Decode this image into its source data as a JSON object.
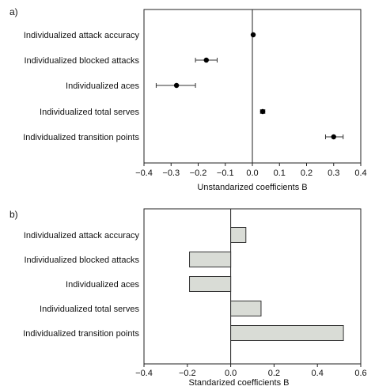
{
  "chart_data": [
    {
      "panel_label": "a)",
      "type": "scatter",
      "categories": [
        "Individualized attack accuracy",
        "Individualized blocked attacks",
        "Individualized aces",
        "Individualized total serves",
        "Individualized transition points"
      ],
      "values": [
        0.003,
        -0.17,
        -0.28,
        0.038,
        0.3
      ],
      "error_low": [
        0.003,
        -0.21,
        -0.355,
        0.03,
        0.27
      ],
      "error_high": [
        0.003,
        -0.13,
        -0.21,
        0.046,
        0.335
      ],
      "xlabel": "Unstandarized coefficients B",
      "xlim": [
        -0.4,
        0.4
      ],
      "xticks": [
        "−0.4",
        "−0.3",
        "−0.2",
        "−0.1",
        "0.0",
        "0.1",
        "0.2",
        "0.3",
        "0.4"
      ],
      "reference_line": 0,
      "marker_color": "#000000"
    },
    {
      "panel_label": "b)",
      "type": "bar",
      "orientation": "horizontal",
      "categories": [
        "Individualized attack accuracy",
        "Individualized blocked attacks",
        "Individualized aces",
        "Individualized total serves",
        "Individualized transition points"
      ],
      "values": [
        0.07,
        -0.19,
        -0.19,
        0.14,
        0.52
      ],
      "xlabel": "Standarized coefficients B",
      "xlim": [
        -0.4,
        0.6
      ],
      "xticks": [
        "−0.4",
        "−0.2",
        "0.0",
        "0.2",
        "0.4",
        "0.6"
      ],
      "reference_line": 0,
      "bar_color": "#d9dcd6",
      "bar_edge_color": "#333333"
    }
  ]
}
